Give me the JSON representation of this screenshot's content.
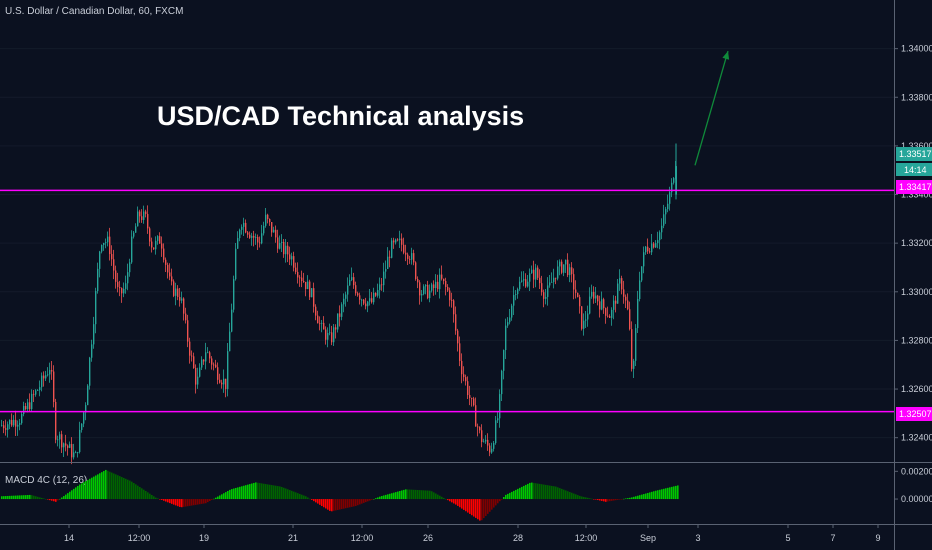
{
  "chart_data": [
    {
      "type": "candlestick",
      "symbol": "U.S. Dollar / Canadian Dollar, 60, FXCM",
      "headline": "USD/CAD Technical analysis",
      "yticks": [
        "1.32400",
        "1.32600",
        "1.32800",
        "1.33000",
        "1.33200",
        "1.33400",
        "1.33600",
        "1.33800",
        "1.34000"
      ],
      "ylim": [
        1.323,
        1.342
      ],
      "xticks": [
        "14",
        "12:00",
        "19",
        "21",
        "12:00",
        "26",
        "28",
        "12:00",
        "Sep",
        "3",
        "5",
        "7",
        "9"
      ],
      "price_labels": {
        "last": "1.33517",
        "countdown": "14:14",
        "resistance": "1.33417",
        "support": "1.32507"
      },
      "levels": {
        "resistance": 1.33417,
        "support": 1.32507
      },
      "close_path": [
        [
          0,
          1.3245
        ],
        [
          20,
          1.3248
        ],
        [
          40,
          1.3262
        ],
        [
          50,
          1.327
        ],
        [
          55,
          1.3242
        ],
        [
          75,
          1.3232
        ],
        [
          85,
          1.3255
        ],
        [
          92,
          1.3285
        ],
        [
          100,
          1.3322
        ],
        [
          108,
          1.332
        ],
        [
          118,
          1.3298
        ],
        [
          125,
          1.3302
        ],
        [
          130,
          1.3318
        ],
        [
          138,
          1.3332
        ],
        [
          145,
          1.333
        ],
        [
          152,
          1.3318
        ],
        [
          160,
          1.3322
        ],
        [
          170,
          1.3302
        ],
        [
          180,
          1.3298
        ],
        [
          188,
          1.3278
        ],
        [
          196,
          1.3262
        ],
        [
          205,
          1.3276
        ],
        [
          215,
          1.3268
        ],
        [
          225,
          1.3262
        ],
        [
          235,
          1.3315
        ],
        [
          240,
          1.333
        ],
        [
          248,
          1.3325
        ],
        [
          258,
          1.332
        ],
        [
          265,
          1.333
        ],
        [
          272,
          1.3325
        ],
        [
          280,
          1.3318
        ],
        [
          290,
          1.3315
        ],
        [
          298,
          1.3308
        ],
        [
          310,
          1.33
        ],
        [
          320,
          1.3285
        ],
        [
          330,
          1.328
        ],
        [
          340,
          1.3292
        ],
        [
          350,
          1.3305
        ],
        [
          360,
          1.3298
        ],
        [
          370,
          1.3295
        ],
        [
          380,
          1.3302
        ],
        [
          390,
          1.3318
        ],
        [
          400,
          1.332
        ],
        [
          410,
          1.3315
        ],
        [
          420,
          1.33
        ],
        [
          430,
          1.33
        ],
        [
          440,
          1.3305
        ],
        [
          450,
          1.3298
        ],
        [
          460,
          1.327
        ],
        [
          470,
          1.3255
        ],
        [
          480,
          1.324
        ],
        [
          490,
          1.3235
        ],
        [
          498,
          1.325
        ],
        [
          505,
          1.3285
        ],
        [
          515,
          1.3302
        ],
        [
          525,
          1.3305
        ],
        [
          535,
          1.3308
        ],
        [
          545,
          1.3298
        ],
        [
          555,
          1.3308
        ],
        [
          565,
          1.3312
        ],
        [
          575,
          1.33
        ],
        [
          582,
          1.3285
        ],
        [
          592,
          1.33
        ],
        [
          600,
          1.3295
        ],
        [
          610,
          1.329
        ],
        [
          620,
          1.3305
        ],
        [
          628,
          1.329
        ],
        [
          632,
          1.3262
        ],
        [
          638,
          1.3305
        ],
        [
          645,
          1.3318
        ],
        [
          652,
          1.332
        ],
        [
          660,
          1.3325
        ],
        [
          668,
          1.3338
        ],
        [
          672,
          1.3345
        ],
        [
          676,
          1.3352
        ]
      ],
      "forecast_arrow": {
        "from": [
          695,
          1.3352
        ],
        "to": [
          728,
          1.3399
        ]
      }
    },
    {
      "type": "bar",
      "title": "MACD 4C (12, 26)",
      "yticks": [
        "0.00200",
        "0.00000"
      ],
      "ylim": [
        -0.0018,
        0.0026
      ],
      "colors": [
        "#00c800",
        "#006400",
        "#ff0000",
        "#800000"
      ],
      "series": [
        {
          "name": "MACD",
          "x": [
            0,
            30,
            55,
            80,
            105,
            130,
            155,
            180,
            205,
            230,
            255,
            280,
            305,
            330,
            355,
            380,
            405,
            430,
            455,
            480,
            505,
            530,
            555,
            580,
            605,
            630,
            655,
            678
          ],
          "values": [
            0.0002,
            0.0003,
            -0.0002,
            0.0011,
            0.0021,
            0.0013,
            0.0001,
            -0.0006,
            -0.0003,
            0.0007,
            0.0012,
            0.0009,
            0.0002,
            -0.0009,
            -0.0005,
            0.0002,
            0.0007,
            0.0006,
            -0.0004,
            -0.0016,
            0.0003,
            0.0012,
            0.0009,
            0.0002,
            -0.0002,
            0.0001,
            0.0006,
            0.001
          ]
        }
      ]
    }
  ]
}
